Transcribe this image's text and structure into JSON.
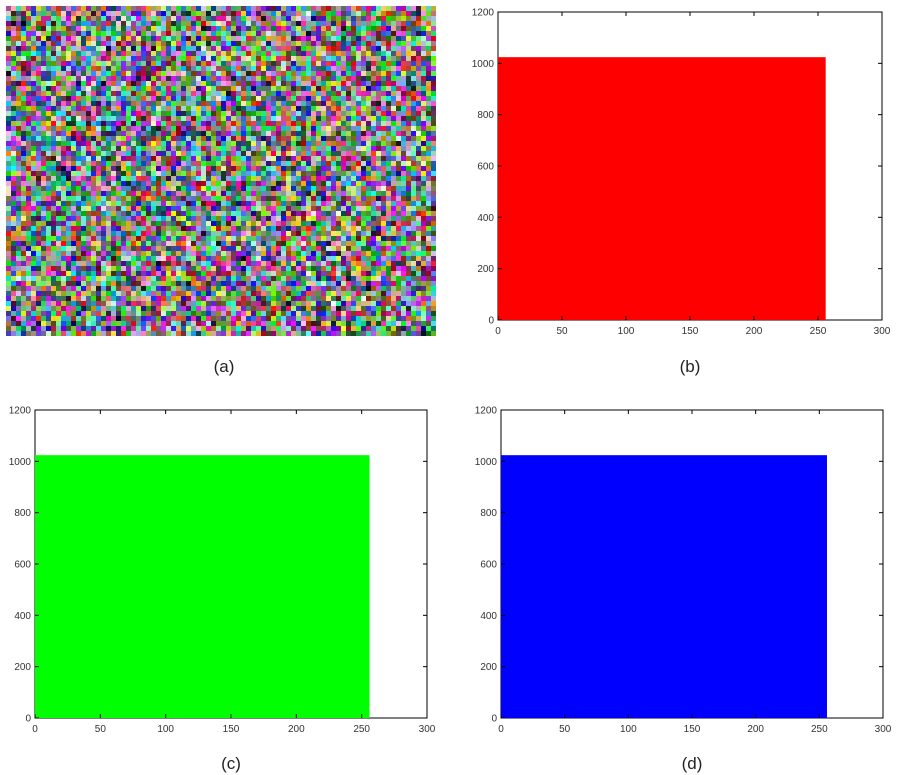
{
  "noise_panel": {
    "caption": "(a)"
  },
  "chart_data": [
    {
      "type": "bar",
      "caption": "(b)",
      "color": "#ff0000",
      "x_range": [
        0,
        256
      ],
      "value": 1024,
      "xlim": [
        0,
        300
      ],
      "ylim": [
        0,
        1200
      ],
      "xticks": [
        0,
        50,
        100,
        150,
        200,
        250,
        300
      ],
      "yticks": [
        0,
        200,
        400,
        600,
        800,
        1000,
        1200
      ],
      "xlabel": "",
      "ylabel": "",
      "title": "",
      "grid": false
    },
    {
      "type": "bar",
      "caption": "(c)",
      "color": "#00ff00",
      "x_range": [
        0,
        256
      ],
      "value": 1024,
      "xlim": [
        0,
        300
      ],
      "ylim": [
        0,
        1200
      ],
      "xticks": [
        0,
        50,
        100,
        150,
        200,
        250,
        300
      ],
      "yticks": [
        0,
        200,
        400,
        600,
        800,
        1000,
        1200
      ],
      "xlabel": "",
      "ylabel": "",
      "title": "",
      "grid": false
    },
    {
      "type": "bar",
      "caption": "(d)",
      "color": "#0000ff",
      "x_range": [
        0,
        256
      ],
      "value": 1024,
      "xlim": [
        0,
        300
      ],
      "ylim": [
        0,
        1200
      ],
      "xticks": [
        0,
        50,
        100,
        150,
        200,
        250,
        300
      ],
      "yticks": [
        0,
        200,
        400,
        600,
        800,
        1000,
        1200
      ],
      "xlabel": "",
      "ylabel": "",
      "title": "",
      "grid": false
    }
  ]
}
